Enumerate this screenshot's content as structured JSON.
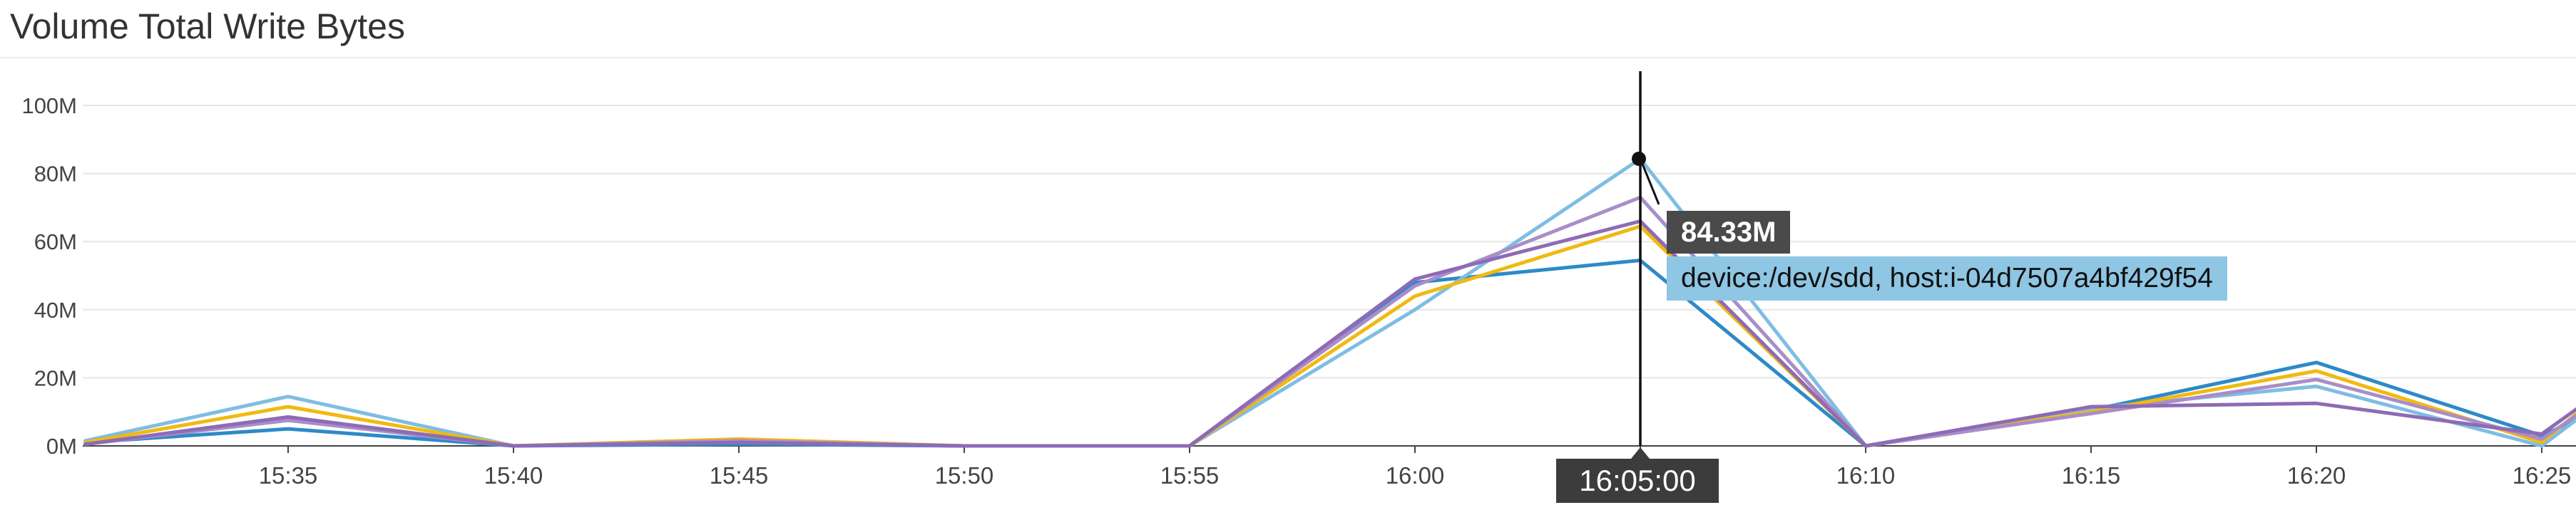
{
  "widget": {
    "title": "Volume Total Write Bytes"
  },
  "tooltip": {
    "value": "84.33M",
    "label": "device:/dev/sdd, host:i-04d7507a4bf429f54",
    "time": "16:05:00"
  },
  "colors": {
    "dark_blue": "#2d8ac7",
    "light_blue": "#7fbde3",
    "gold": "#f1b911",
    "light_purple": "#a98dc8",
    "purple": "#8e6bb5"
  },
  "chart_data": {
    "type": "line",
    "title": "Volume Total Write Bytes",
    "xlabel": "",
    "ylabel": "",
    "x": [
      "15:30:30",
      "15:35",
      "15:40",
      "15:45",
      "15:50",
      "15:55",
      "16:00",
      "16:05",
      "16:10",
      "16:15",
      "16:20",
      "16:25",
      "16:26"
    ],
    "x_ticks": [
      "15:35",
      "15:40",
      "15:45",
      "15:50",
      "15:55",
      "16:00",
      "16:05",
      "16:10",
      "16:15",
      "16:20",
      "16:25"
    ],
    "y_ticks": [
      "0M",
      "20M",
      "40M",
      "60M",
      "80M",
      "100M"
    ],
    "ylim": [
      0,
      110
    ],
    "y_unit": "M",
    "grid": true,
    "legend": "none",
    "hover_time": "16:05",
    "series": [
      {
        "color": "#2d8ac7",
        "values": [
          1,
          5,
          0,
          0.5,
          0,
          0,
          48,
          54.5,
          0,
          10.5,
          24.5,
          3,
          9
        ]
      },
      {
        "color": "#7fbde3",
        "values": [
          1.5,
          14.5,
          0,
          1,
          0,
          0,
          40,
          84.33,
          0,
          11,
          17.5,
          0,
          10
        ]
      },
      {
        "color": "#f1b911",
        "values": [
          1,
          11.5,
          0,
          2,
          0,
          0,
          44,
          64.5,
          0,
          10,
          22,
          1,
          12
        ]
      },
      {
        "color": "#a98dc8",
        "values": [
          0.5,
          7.5,
          0,
          1.5,
          0,
          0,
          47,
          73,
          0,
          9.5,
          19.5,
          2,
          11
        ]
      },
      {
        "color": "#8e6bb5",
        "values": [
          0.5,
          8.5,
          0,
          1,
          0,
          0,
          49,
          66,
          0,
          11.5,
          12.5,
          3.5,
          13
        ]
      }
    ]
  }
}
